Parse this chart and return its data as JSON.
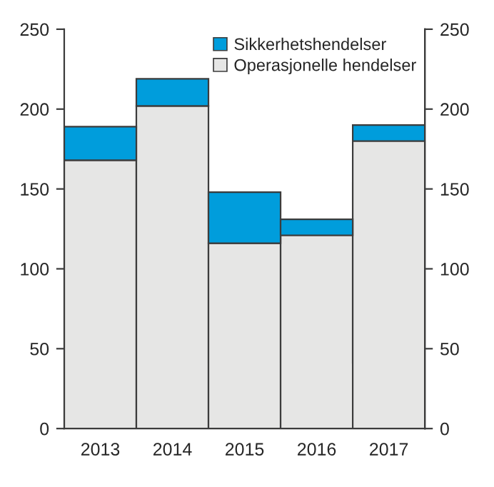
{
  "chart_data": {
    "type": "bar",
    "stacked": true,
    "categories": [
      "2013",
      "2014",
      "2015",
      "2016",
      "2017"
    ],
    "series": [
      {
        "name": "Operasjonelle hendelser",
        "color": "#e6e6e5",
        "values": [
          168,
          202,
          116,
          121,
          180
        ]
      },
      {
        "name": "Sikkerhetshendelser",
        "color": "#009ddc",
        "values": [
          21,
          17,
          32,
          10,
          10
        ]
      }
    ],
    "ylim": [
      0,
      250
    ],
    "yticks": [
      0,
      50,
      100,
      150,
      200,
      250
    ],
    "y2lim": [
      0,
      250
    ],
    "y2ticks": [
      0,
      50,
      100,
      150,
      200,
      250
    ],
    "legend": "top right",
    "grid": false
  }
}
